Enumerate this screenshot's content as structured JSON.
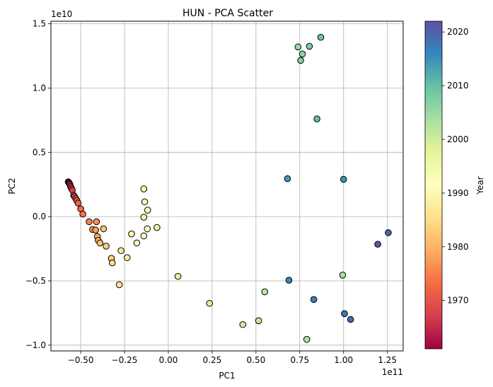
{
  "chart_data": {
    "type": "scatter",
    "title": "HUN - PCA Scatter",
    "xlabel": "PC1",
    "ylabel": "PC2",
    "x_offset_text": "1e11",
    "y_offset_text": "1e10",
    "xlim": [
      -0.67,
      1.34
    ],
    "ylim": [
      -1.045,
      1.52
    ],
    "xticks": [
      -0.5,
      -0.25,
      0.0,
      0.25,
      0.5,
      0.75,
      1.0,
      1.25
    ],
    "xtick_labels": [
      "−0.50",
      "−0.25",
      "0.00",
      "0.25",
      "0.50",
      "0.75",
      "1.00",
      "1.25"
    ],
    "yticks": [
      -1.0,
      -0.5,
      0.0,
      0.5,
      1.0,
      1.5
    ],
    "ytick_labels": [
      "−1.0",
      "−0.5",
      "0.0",
      "0.5",
      "1.0",
      "1.5"
    ],
    "grid": true,
    "colorbar": {
      "label": "Year",
      "colormap": "Spectral",
      "range": [
        1961,
        2022
      ],
      "ticks": [
        1970,
        1980,
        1990,
        2000,
        2010,
        2020
      ],
      "tick_labels": [
        "1970",
        "1980",
        "1990",
        "2000",
        "2010",
        "2020"
      ]
    },
    "points": [
      {
        "x": -0.571,
        "y": 0.27,
        "year": 1961
      },
      {
        "x": -0.568,
        "y": 0.265,
        "year": 1962
      },
      {
        "x": -0.565,
        "y": 0.26,
        "year": 1963
      },
      {
        "x": -0.562,
        "y": 0.25,
        "year": 1964
      },
      {
        "x": -0.558,
        "y": 0.235,
        "year": 1965
      },
      {
        "x": -0.553,
        "y": 0.22,
        "year": 1966
      },
      {
        "x": -0.548,
        "y": 0.205,
        "year": 1967
      },
      {
        "x": -0.54,
        "y": 0.165,
        "year": 1968
      },
      {
        "x": -0.535,
        "y": 0.155,
        "year": 1969
      },
      {
        "x": -0.528,
        "y": 0.14,
        "year": 1970
      },
      {
        "x": -0.522,
        "y": 0.125,
        "year": 1971
      },
      {
        "x": -0.515,
        "y": 0.105,
        "year": 1972
      },
      {
        "x": -0.5,
        "y": 0.06,
        "year": 1973
      },
      {
        "x": -0.488,
        "y": 0.02,
        "year": 1974
      },
      {
        "x": -0.452,
        "y": -0.04,
        "year": 1975
      },
      {
        "x": -0.41,
        "y": -0.04,
        "year": 1976
      },
      {
        "x": -0.432,
        "y": -0.1,
        "year": 1977
      },
      {
        "x": -0.415,
        "y": -0.105,
        "year": 1978
      },
      {
        "x": -0.405,
        "y": -0.155,
        "year": 1979
      },
      {
        "x": -0.4,
        "y": -0.185,
        "year": 1980
      },
      {
        "x": -0.39,
        "y": -0.205,
        "year": 1981
      },
      {
        "x": -0.37,
        "y": -0.095,
        "year": 1982
      },
      {
        "x": -0.355,
        "y": -0.23,
        "year": 1983
      },
      {
        "x": -0.325,
        "y": -0.325,
        "year": 1984
      },
      {
        "x": -0.32,
        "y": -0.36,
        "year": 1985
      },
      {
        "x": -0.28,
        "y": -0.53,
        "year": 1986
      },
      {
        "x": -0.27,
        "y": -0.265,
        "year": 1987
      },
      {
        "x": -0.235,
        "y": -0.32,
        "year": 1988
      },
      {
        "x": -0.21,
        "y": -0.135,
        "year": 1989
      },
      {
        "x": -0.18,
        "y": -0.205,
        "year": 1990
      },
      {
        "x": -0.14,
        "y": -0.15,
        "year": 1991
      },
      {
        "x": -0.12,
        "y": -0.095,
        "year": 1992
      },
      {
        "x": -0.118,
        "y": 0.05,
        "year": 1993
      },
      {
        "x": -0.135,
        "y": 0.115,
        "year": 1994
      },
      {
        "x": -0.14,
        "y": 0.215,
        "year": 1995
      },
      {
        "x": -0.14,
        "y": -0.005,
        "year": 1996
      },
      {
        "x": -0.065,
        "y": -0.085,
        "year": 1997
      },
      {
        "x": 0.055,
        "y": -0.465,
        "year": 1998
      },
      {
        "x": 0.235,
        "y": -0.675,
        "year": 1999
      },
      {
        "x": 0.425,
        "y": -0.84,
        "year": 2000
      },
      {
        "x": 0.515,
        "y": -0.81,
        "year": 2001
      },
      {
        "x": 0.55,
        "y": -0.585,
        "year": 2002
      },
      {
        "x": 0.79,
        "y": -0.955,
        "year": 2003
      },
      {
        "x": 0.995,
        "y": -0.455,
        "year": 2004
      },
      {
        "x": 0.74,
        "y": 1.32,
        "year": 2005
      },
      {
        "x": 0.765,
        "y": 1.265,
        "year": 2006
      },
      {
        "x": 0.755,
        "y": 1.215,
        "year": 2007
      },
      {
        "x": 0.805,
        "y": 1.325,
        "year": 2008
      },
      {
        "x": 0.87,
        "y": 1.395,
        "year": 2009
      },
      {
        "x": 0.848,
        "y": 0.76,
        "year": 2010
      },
      {
        "x": 0.68,
        "y": 0.295,
        "year": 2014
      },
      {
        "x": 1.0,
        "y": 0.29,
        "year": 2015
      },
      {
        "x": 0.688,
        "y": -0.495,
        "year": 2016
      },
      {
        "x": 0.83,
        "y": -0.645,
        "year": 2017
      },
      {
        "x": 1.005,
        "y": -0.755,
        "year": 2018
      },
      {
        "x": 1.04,
        "y": -0.8,
        "year": 2019
      },
      {
        "x": 1.255,
        "y": -0.125,
        "year": 2020
      },
      {
        "x": 1.195,
        "y": -0.215,
        "year": 2021
      }
    ]
  }
}
